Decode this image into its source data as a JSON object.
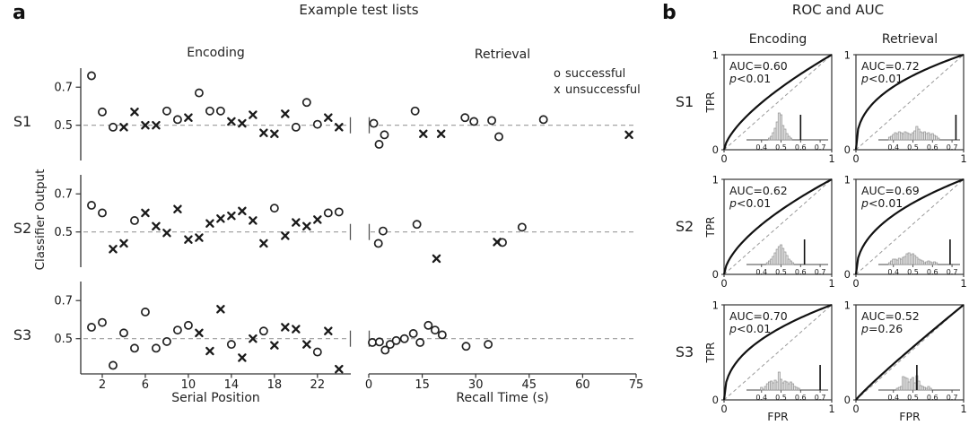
{
  "panel_letters": {
    "a": "a",
    "b": "b"
  },
  "colors": {
    "ink": "#1a1a1a",
    "spine": "#333333",
    "dash_gray": "#999999",
    "hist_fill": "#e6e6e6",
    "hist_stroke": "#909090",
    "curve": "#111111"
  },
  "chart_data": [
    {
      "id": "example-test-lists",
      "type": "scatter",
      "title": "Example test lists",
      "ylabel": "Classifier Output",
      "rows": [
        "S1",
        "S2",
        "S3"
      ],
      "ylim": [
        0.315,
        0.8
      ],
      "yticks": [
        0.5,
        0.7
      ],
      "chance_level": 0.5,
      "grid": false,
      "legend": [
        {
          "marker": "o",
          "label": "successful"
        },
        {
          "marker": "x",
          "label": "unsuccessful"
        }
      ],
      "columns": [
        {
          "key": "Encoding",
          "label": "Encoding",
          "xlabel": "Serial Position",
          "xlim": [
            0,
            25.1
          ],
          "xticks": [
            2,
            6,
            10,
            14,
            18,
            22
          ]
        },
        {
          "key": "Retrieval",
          "label": "Retrieval",
          "xlabel": "Recall Time (s)",
          "xlim": [
            0,
            75
          ],
          "xticks": [
            0,
            15,
            30,
            45,
            60,
            75
          ]
        }
      ],
      "panels": [
        {
          "row": "S1",
          "col": "Encoding",
          "successful": [
            [
              1,
              0.76
            ],
            [
              2,
              0.57
            ],
            [
              3,
              0.49
            ],
            [
              8,
              0.575
            ],
            [
              9,
              0.53
            ],
            [
              11,
              0.67
            ],
            [
              12,
              0.575
            ],
            [
              13,
              0.575
            ],
            [
              20,
              0.49
            ],
            [
              21,
              0.62
            ],
            [
              22,
              0.505
            ]
          ],
          "unsuccessful": [
            [
              4,
              0.49
            ],
            [
              5,
              0.57
            ],
            [
              6,
              0.5
            ],
            [
              7,
              0.5
            ],
            [
              10,
              0.54
            ],
            [
              14,
              0.52
            ],
            [
              15,
              0.51
            ],
            [
              16,
              0.555
            ],
            [
              17,
              0.46
            ],
            [
              18,
              0.455
            ],
            [
              19,
              0.56
            ],
            [
              23,
              0.54
            ],
            [
              24,
              0.49
            ]
          ]
        },
        {
          "row": "S1",
          "col": "Retrieval",
          "successful": [
            [
              1.4,
              0.51
            ],
            [
              2.9,
              0.4
            ],
            [
              4.4,
              0.45
            ],
            [
              13,
              0.575
            ],
            [
              27,
              0.54
            ],
            [
              29.5,
              0.52
            ],
            [
              34.5,
              0.525
            ],
            [
              36.5,
              0.44
            ],
            [
              49,
              0.53
            ]
          ],
          "unsuccessful": [
            [
              15.3,
              0.455
            ],
            [
              20.3,
              0.455
            ],
            [
              73,
              0.45
            ]
          ]
        },
        {
          "row": "S2",
          "col": "Encoding",
          "successful": [
            [
              1,
              0.64
            ],
            [
              2,
              0.6
            ],
            [
              5,
              0.56
            ],
            [
              18,
              0.625
            ],
            [
              23,
              0.6
            ],
            [
              24,
              0.605
            ]
          ],
          "unsuccessful": [
            [
              3,
              0.41
            ],
            [
              4,
              0.44
            ],
            [
              6,
              0.6
            ],
            [
              7,
              0.53
            ],
            [
              8,
              0.495
            ],
            [
              9,
              0.62
            ],
            [
              10,
              0.46
            ],
            [
              11,
              0.47
            ],
            [
              12,
              0.545
            ],
            [
              13,
              0.57
            ],
            [
              14,
              0.585
            ],
            [
              15,
              0.61
            ],
            [
              16,
              0.56
            ],
            [
              17,
              0.44
            ],
            [
              19,
              0.48
            ],
            [
              20,
              0.55
            ],
            [
              21,
              0.53
            ],
            [
              22,
              0.565
            ]
          ]
        },
        {
          "row": "S2",
          "col": "Retrieval",
          "successful": [
            [
              2.7,
              0.44
            ],
            [
              4,
              0.505
            ],
            [
              13.5,
              0.54
            ],
            [
              37.5,
              0.445
            ],
            [
              43,
              0.525
            ]
          ],
          "unsuccessful": [
            [
              19,
              0.36
            ],
            [
              36,
              0.447
            ]
          ]
        },
        {
          "row": "S3",
          "col": "Encoding",
          "successful": [
            [
              1,
              0.56
            ],
            [
              2,
              0.585
            ],
            [
              3,
              0.36
            ],
            [
              4,
              0.53
            ],
            [
              5,
              0.45
            ],
            [
              6,
              0.64
            ],
            [
              7,
              0.45
            ],
            [
              8,
              0.485
            ],
            [
              9,
              0.545
            ],
            [
              10,
              0.57
            ],
            [
              14,
              0.47
            ],
            [
              17,
              0.54
            ],
            [
              22,
              0.43
            ]
          ],
          "unsuccessful": [
            [
              11,
              0.53
            ],
            [
              12,
              0.435
            ],
            [
              13,
              0.655
            ],
            [
              15,
              0.4
            ],
            [
              16,
              0.5
            ],
            [
              18,
              0.465
            ],
            [
              19,
              0.56
            ],
            [
              20,
              0.55
            ],
            [
              21,
              0.47
            ],
            [
              23,
              0.54
            ],
            [
              24,
              0.34
            ]
          ]
        },
        {
          "row": "S3",
          "col": "Retrieval",
          "successful": [
            [
              1,
              0.48
            ],
            [
              3,
              0.483
            ],
            [
              4.6,
              0.44
            ],
            [
              6,
              0.47
            ],
            [
              7.7,
              0.49
            ],
            [
              10,
              0.5
            ],
            [
              12.5,
              0.527
            ],
            [
              14.4,
              0.48
            ],
            [
              16.7,
              0.57
            ],
            [
              18.6,
              0.545
            ],
            [
              20.6,
              0.52
            ],
            [
              27.3,
              0.46
            ],
            [
              33.5,
              0.47
            ]
          ],
          "unsuccessful": []
        }
      ]
    },
    {
      "id": "roc-and-auc",
      "type": "line",
      "title": "ROC and AUC",
      "rows": [
        "S1",
        "S2",
        "S3"
      ],
      "columns": [
        "Encoding",
        "Retrieval"
      ],
      "xlabel": "FPR",
      "ylabel": "TPR",
      "xlim": [
        0,
        1
      ],
      "ylim": [
        0,
        1
      ],
      "xticks": [
        0,
        1
      ],
      "yticks": [
        0,
        1
      ],
      "diagonal_reference": true,
      "inset_ticks": [
        0.4,
        0.5,
        0.6,
        0.7
      ],
      "panels": [
        {
          "row": "S1",
          "col": "Encoding",
          "auc": 0.6,
          "auc_text": "AUC=0.60",
          "p_text": "p<0.01",
          "null_hist": [
            [
              0.44,
              2
            ],
            [
              0.45,
              4
            ],
            [
              0.46,
              8
            ],
            [
              0.47,
              13
            ],
            [
              0.48,
              20
            ],
            [
              0.49,
              30
            ],
            [
              0.5,
              28
            ],
            [
              0.51,
              16
            ],
            [
              0.52,
              12
            ],
            [
              0.53,
              7
            ],
            [
              0.54,
              4
            ],
            [
              0.55,
              2
            ]
          ]
        },
        {
          "row": "S1",
          "col": "Retrieval",
          "auc": 0.72,
          "auc_text": "AUC=0.72",
          "p_text": "p<0.01",
          "null_hist": [
            [
              0.38,
              3
            ],
            [
              0.39,
              4
            ],
            [
              0.4,
              6
            ],
            [
              0.41,
              8
            ],
            [
              0.42,
              7
            ],
            [
              0.43,
              9
            ],
            [
              0.44,
              8
            ],
            [
              0.45,
              7
            ],
            [
              0.46,
              9
            ],
            [
              0.47,
              8
            ],
            [
              0.48,
              7
            ],
            [
              0.49,
              6
            ],
            [
              0.5,
              8
            ],
            [
              0.51,
              10
            ],
            [
              0.52,
              15
            ],
            [
              0.53,
              12
            ],
            [
              0.54,
              9
            ],
            [
              0.55,
              8
            ],
            [
              0.56,
              9
            ],
            [
              0.57,
              7
            ],
            [
              0.58,
              8
            ],
            [
              0.59,
              6
            ],
            [
              0.6,
              7
            ],
            [
              0.61,
              5
            ],
            [
              0.62,
              4
            ],
            [
              0.63,
              2
            ]
          ]
        },
        {
          "row": "S2",
          "col": "Encoding",
          "auc": 0.62,
          "auc_text": "AUC=0.62",
          "p_text": "p<0.01",
          "null_hist": [
            [
              0.43,
              2
            ],
            [
              0.44,
              4
            ],
            [
              0.45,
              6
            ],
            [
              0.46,
              9
            ],
            [
              0.47,
              13
            ],
            [
              0.48,
              17
            ],
            [
              0.49,
              20
            ],
            [
              0.5,
              22
            ],
            [
              0.51,
              18
            ],
            [
              0.52,
              14
            ],
            [
              0.53,
              10
            ],
            [
              0.54,
              6
            ],
            [
              0.55,
              4
            ],
            [
              0.56,
              2
            ]
          ]
        },
        {
          "row": "S2",
          "col": "Retrieval",
          "auc": 0.69,
          "auc_text": "AUC=0.69",
          "p_text": "p<0.01",
          "null_hist": [
            [
              0.38,
              2
            ],
            [
              0.39,
              4
            ],
            [
              0.4,
              6
            ],
            [
              0.41,
              6
            ],
            [
              0.42,
              5
            ],
            [
              0.43,
              7
            ],
            [
              0.44,
              6
            ],
            [
              0.45,
              8
            ],
            [
              0.46,
              9
            ],
            [
              0.47,
              12
            ],
            [
              0.48,
              13
            ],
            [
              0.49,
              11
            ],
            [
              0.5,
              12
            ],
            [
              0.51,
              10
            ],
            [
              0.52,
              8
            ],
            [
              0.53,
              6
            ],
            [
              0.54,
              5
            ],
            [
              0.55,
              4
            ],
            [
              0.56,
              2
            ],
            [
              0.57,
              3
            ],
            [
              0.58,
              4
            ],
            [
              0.59,
              3
            ],
            [
              0.6,
              2
            ],
            [
              0.61,
              3
            ],
            [
              0.62,
              2
            ]
          ]
        },
        {
          "row": "S3",
          "col": "Encoding",
          "auc": 0.7,
          "auc_text": "AUC=0.70",
          "p_text": "p<0.01",
          "null_hist": [
            [
              0.4,
              3
            ],
            [
              0.41,
              1
            ],
            [
              0.42,
              4
            ],
            [
              0.43,
              7
            ],
            [
              0.44,
              9
            ],
            [
              0.45,
              10
            ],
            [
              0.46,
              8
            ],
            [
              0.47,
              11
            ],
            [
              0.48,
              9
            ],
            [
              0.49,
              20
            ],
            [
              0.5,
              12
            ],
            [
              0.51,
              8
            ],
            [
              0.52,
              10
            ],
            [
              0.53,
              9
            ],
            [
              0.54,
              7
            ],
            [
              0.55,
              9
            ],
            [
              0.56,
              7
            ],
            [
              0.57,
              4
            ],
            [
              0.58,
              3
            ],
            [
              0.59,
              2
            ]
          ]
        },
        {
          "row": "S3",
          "col": "Retrieval",
          "auc": 0.52,
          "auc_text": "AUC=0.52",
          "p_text": "p=0.26",
          "null_hist": [
            [
              0.42,
              2
            ],
            [
              0.43,
              3
            ],
            [
              0.44,
              4
            ],
            [
              0.45,
              15
            ],
            [
              0.46,
              14
            ],
            [
              0.47,
              13
            ],
            [
              0.48,
              9
            ],
            [
              0.49,
              12
            ],
            [
              0.5,
              14
            ],
            [
              0.51,
              8
            ],
            [
              0.52,
              16
            ],
            [
              0.53,
              10
            ],
            [
              0.54,
              5
            ],
            [
              0.55,
              4
            ],
            [
              0.56,
              3
            ],
            [
              0.57,
              2
            ],
            [
              0.58,
              4
            ],
            [
              0.59,
              2
            ]
          ]
        }
      ]
    }
  ]
}
